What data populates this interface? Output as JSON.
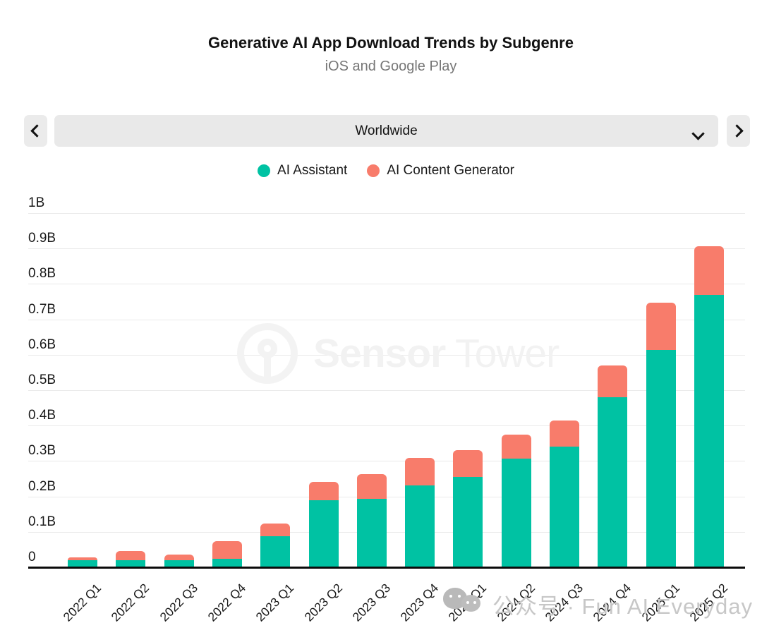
{
  "header": {
    "title": "Generative AI App Download Trends by Subgenre",
    "subtitle": "iOS and Google Play"
  },
  "selector": {
    "value": "Worldwide",
    "prev_icon": "chevron-left",
    "next_icon": "chevron-right",
    "expand_icon": "chevron-down"
  },
  "legend": [
    {
      "label": "AI Assistant",
      "color": "#00C2A3"
    },
    {
      "label": "AI Content Generator",
      "color": "#F87C6B"
    }
  ],
  "watermarks": {
    "center_bold": "Sensor",
    "center_light": "Tower",
    "bottom_text": "公众号 · Fun AI Everyday"
  },
  "chart_data": {
    "type": "bar",
    "stacked": true,
    "title": "Generative AI App Download Trends by Subgenre",
    "subtitle": "iOS and Google Play",
    "region": "Worldwide",
    "unit": "billions of downloads",
    "xlabel": "",
    "ylabel": "",
    "ylim": [
      0,
      1.0
    ],
    "grid": true,
    "legend_position": "top",
    "y_ticks": [
      "0",
      "0.1B",
      "0.2B",
      "0.3B",
      "0.4B",
      "0.5B",
      "0.6B",
      "0.7B",
      "0.8B",
      "0.9B",
      "1B"
    ],
    "categories": [
      "2022 Q1",
      "2022 Q2",
      "2022 Q3",
      "2022 Q4",
      "2023 Q1",
      "2023 Q2",
      "2023 Q3",
      "2023 Q4",
      "2024 Q1",
      "2024 Q2",
      "2024 Q3",
      "2024 Q4",
      "2025 Q1",
      "2025 Q2"
    ],
    "series": [
      {
        "name": "AI Assistant",
        "color": "#00C2A3",
        "values": [
          0.021,
          0.022,
          0.022,
          0.025,
          0.09,
          0.191,
          0.195,
          0.233,
          0.257,
          0.309,
          0.343,
          0.482,
          0.616,
          0.771
        ]
      },
      {
        "name": "AI Content Generator",
        "color": "#F87C6B",
        "values": [
          0.009,
          0.026,
          0.016,
          0.051,
          0.036,
          0.052,
          0.07,
          0.078,
          0.076,
          0.068,
          0.074,
          0.09,
          0.133,
          0.137
        ]
      }
    ]
  }
}
